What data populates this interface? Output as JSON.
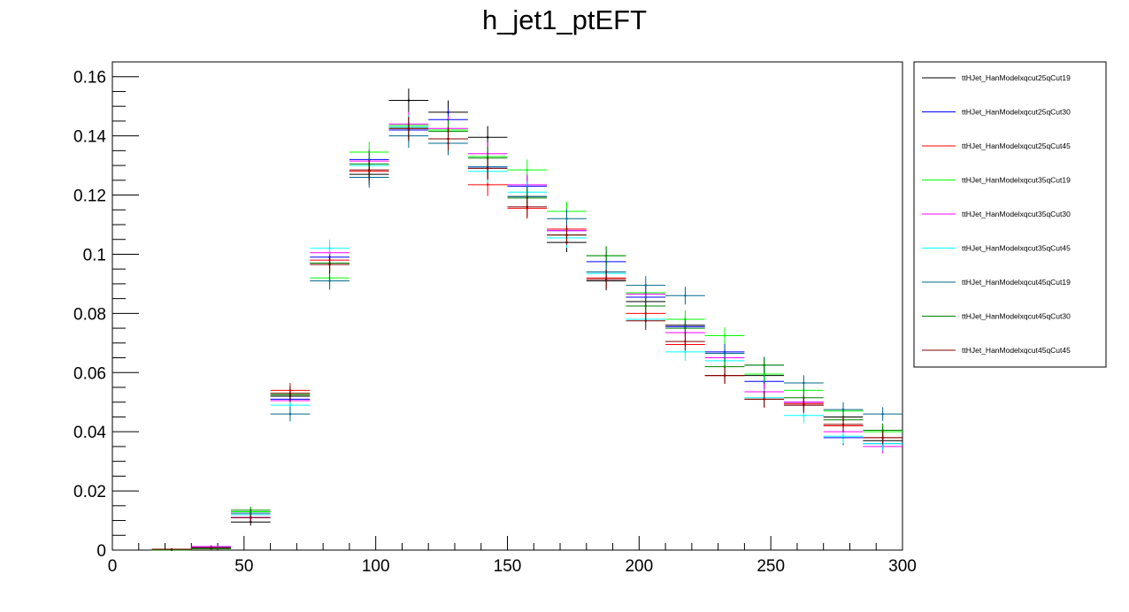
{
  "chart_data": {
    "type": "scatter",
    "title": "h_jet1_ptEFT",
    "xlabel": "",
    "ylabel": "",
    "xlim": [
      0,
      300
    ],
    "ylim": [
      0,
      0.165
    ],
    "x_ticks": [
      0,
      50,
      100,
      150,
      200,
      250,
      300
    ],
    "x_tick_labels": [
      "0",
      "50",
      "100",
      "150",
      "200",
      "250",
      "300"
    ],
    "y_ticks": [
      0,
      0.02,
      0.04,
      0.06,
      0.08,
      0.1,
      0.12,
      0.14,
      0.16
    ],
    "y_tick_labels": [
      "0",
      "0.02",
      "0.04",
      "0.06",
      "0.08",
      "0.1",
      "0.12",
      "0.14",
      "0.16"
    ],
    "grid": false,
    "legend_position": "right",
    "bin_width": 15,
    "x": [
      22.5,
      37.5,
      52.5,
      67.5,
      82.5,
      97.5,
      112.5,
      127.5,
      142.5,
      157.5,
      172.5,
      187.5,
      202.5,
      217.5,
      232.5,
      247.5,
      262.5,
      277.5,
      292.5
    ],
    "series": [
      {
        "name": "ttHJet_HanModelxqcut25qCut19",
        "color": "#000000",
        "values": [
          0,
          0.0005,
          0.0095,
          0.052,
          0.097,
          0.127,
          0.152,
          0.148,
          0.1395,
          0.1195,
          0.104,
          0.091,
          0.084,
          0.076,
          0.059,
          0.059,
          0.049,
          0.045,
          0.037
        ],
        "errors": [
          0,
          0.0005,
          0.0012,
          0.0025,
          0.003,
          0.0035,
          0.004,
          0.004,
          0.0038,
          0.0035,
          0.0033,
          0.0032,
          0.0031,
          0.003,
          0.0028,
          0.0028,
          0.0026,
          0.0025,
          0.0023
        ]
      },
      {
        "name": "ttHJet_HanModelxqcut25qCut30",
        "color": "#0000ff",
        "values": [
          0,
          0.001,
          0.011,
          0.051,
          0.099,
          0.132,
          0.142,
          0.1455,
          0.1295,
          0.123,
          0.108,
          0.0975,
          0.0855,
          0.0755,
          0.067,
          0.057,
          0.05,
          0.038,
          0.036
        ],
        "errors": [
          0,
          0.0005,
          0.0012,
          0.0025,
          0.003,
          0.0035,
          0.004,
          0.004,
          0.0038,
          0.0035,
          0.0033,
          0.0032,
          0.0031,
          0.003,
          0.0028,
          0.0028,
          0.0026,
          0.0025,
          0.0023
        ]
      },
      {
        "name": "ttHJet_HanModelxqcut25qCut45",
        "color": "#ff0000",
        "values": [
          0.0002,
          0.0008,
          0.012,
          0.054,
          0.098,
          0.128,
          0.143,
          0.139,
          0.1235,
          0.1155,
          0.1085,
          0.092,
          0.08,
          0.0695,
          0.059,
          0.051,
          0.0495,
          0.042,
          0.038
        ],
        "errors": [
          0.0002,
          0.0005,
          0.0012,
          0.0025,
          0.003,
          0.0035,
          0.004,
          0.004,
          0.0038,
          0.0035,
          0.0033,
          0.0032,
          0.0031,
          0.003,
          0.0028,
          0.0028,
          0.0026,
          0.0025,
          0.0023
        ]
      },
      {
        "name": "ttHJet_HanModelxqcut35qCut19",
        "color": "#00ff00",
        "values": [
          0,
          0.0005,
          0.013,
          0.053,
          0.092,
          0.1345,
          0.1435,
          0.142,
          0.133,
          0.1285,
          0.1145,
          0.0995,
          0.087,
          0.078,
          0.0725,
          0.0595,
          0.054,
          0.047,
          0.04
        ],
        "errors": [
          0,
          0.0005,
          0.0012,
          0.0025,
          0.003,
          0.0035,
          0.004,
          0.004,
          0.0038,
          0.0035,
          0.0033,
          0.0032,
          0.0031,
          0.003,
          0.0028,
          0.0028,
          0.0026,
          0.0025,
          0.0023
        ]
      },
      {
        "name": "ttHJet_HanModelxqcut35qCut30",
        "color": "#ff00ff",
        "values": [
          0,
          0.0012,
          0.011,
          0.0505,
          0.1005,
          0.1315,
          0.144,
          0.1425,
          0.134,
          0.1235,
          0.108,
          0.094,
          0.0865,
          0.0735,
          0.065,
          0.0535,
          0.05,
          0.04,
          0.035
        ],
        "errors": [
          0,
          0.0005,
          0.0012,
          0.0025,
          0.003,
          0.0035,
          0.004,
          0.004,
          0.0038,
          0.0035,
          0.0033,
          0.0032,
          0.0031,
          0.003,
          0.0028,
          0.0028,
          0.0026,
          0.0025,
          0.0023
        ]
      },
      {
        "name": "ttHJet_HanModelxqcut35qCut45",
        "color": "#00ffff",
        "values": [
          0,
          0.0008,
          0.012,
          0.049,
          0.102,
          0.13,
          0.143,
          0.1375,
          0.128,
          0.121,
          0.1055,
          0.0935,
          0.078,
          0.067,
          0.064,
          0.0515,
          0.0455,
          0.0385,
          0.036
        ],
        "errors": [
          0,
          0.0005,
          0.0012,
          0.0025,
          0.003,
          0.0035,
          0.004,
          0.004,
          0.0038,
          0.0035,
          0.0033,
          0.0032,
          0.0031,
          0.003,
          0.0028,
          0.0028,
          0.0026,
          0.0025,
          0.0023
        ]
      },
      {
        "name": "ttHJet_HanModelxqcut45qCut19",
        "color": "#00688b",
        "values": [
          0,
          0.0008,
          0.0125,
          0.046,
          0.091,
          0.126,
          0.14,
          0.1375,
          0.1295,
          0.1195,
          0.112,
          0.094,
          0.0895,
          0.086,
          0.0665,
          0.0625,
          0.0565,
          0.0475,
          0.046
        ],
        "errors": [
          0,
          0.0005,
          0.0012,
          0.0025,
          0.003,
          0.0035,
          0.004,
          0.004,
          0.0038,
          0.0035,
          0.0033,
          0.0032,
          0.0031,
          0.003,
          0.0028,
          0.0028,
          0.0026,
          0.0025,
          0.0023
        ]
      },
      {
        "name": "ttHJet_HanModelxqcut45qCut30",
        "color": "#008000",
        "values": [
          0,
          0.0005,
          0.0135,
          0.0525,
          0.097,
          0.1305,
          0.1425,
          0.1415,
          0.1325,
          0.119,
          0.1065,
          0.0995,
          0.0825,
          0.075,
          0.062,
          0.0625,
          0.0515,
          0.044,
          0.0405
        ],
        "errors": [
          0,
          0.0005,
          0.0012,
          0.0025,
          0.003,
          0.0035,
          0.004,
          0.004,
          0.0038,
          0.0035,
          0.0033,
          0.0032,
          0.0031,
          0.003,
          0.0028,
          0.0028,
          0.0026,
          0.0025,
          0.0023
        ]
      },
      {
        "name": "ttHJet_HanModelxqcut45qCut45",
        "color": "#800000",
        "values": [
          0.0003,
          0.0008,
          0.011,
          0.053,
          0.0965,
          0.1285,
          0.1425,
          0.139,
          0.129,
          0.116,
          0.1065,
          0.0915,
          0.0775,
          0.0705,
          0.059,
          0.051,
          0.049,
          0.0425,
          0.038
        ],
        "errors": [
          0.0002,
          0.0005,
          0.0012,
          0.0025,
          0.003,
          0.0035,
          0.004,
          0.004,
          0.0038,
          0.0035,
          0.0033,
          0.0032,
          0.0031,
          0.003,
          0.0028,
          0.0028,
          0.0026,
          0.0025,
          0.0023
        ]
      }
    ]
  }
}
